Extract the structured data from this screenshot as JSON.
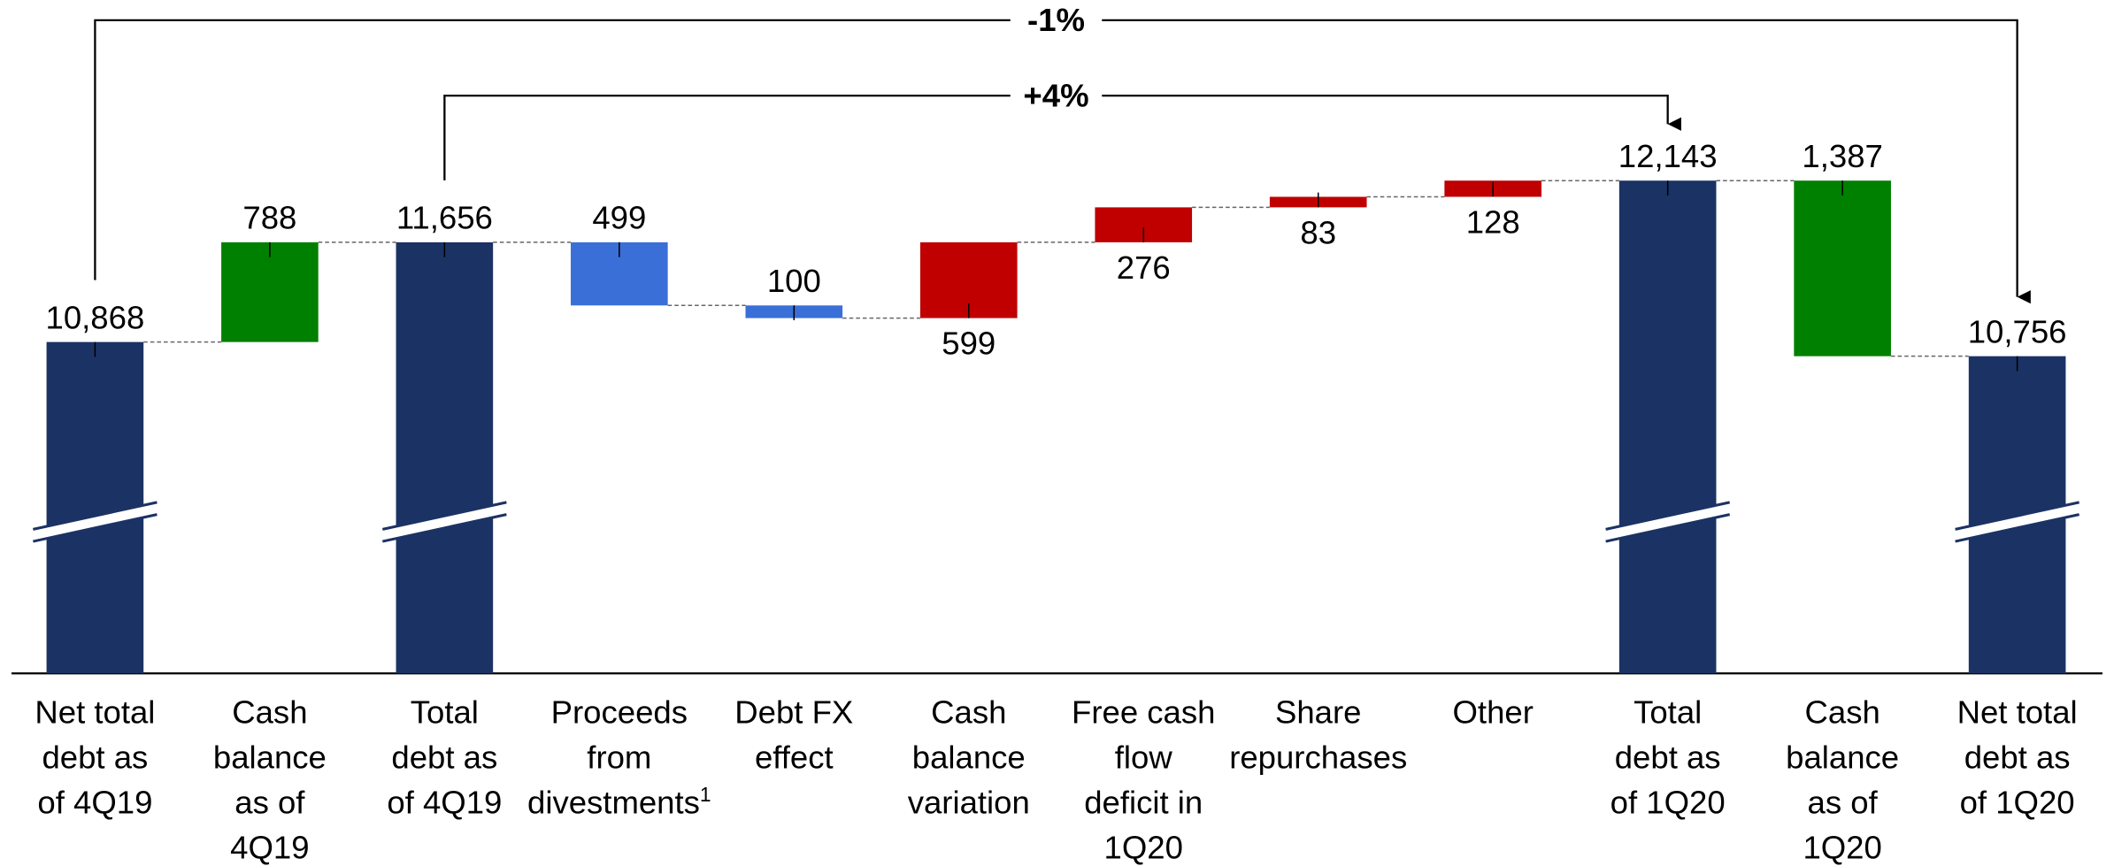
{
  "chart_data": {
    "type": "waterfall",
    "categories": [
      [
        "Net total",
        "debt as",
        "of 4Q19"
      ],
      [
        "Cash",
        "balance",
        "as of",
        "4Q19"
      ],
      [
        "Total",
        "debt as",
        "of 4Q19"
      ],
      [
        "Proceeds",
        "from",
        "divestments"
      ],
      [
        "Debt FX",
        "effect"
      ],
      [
        "Cash",
        "balance",
        "variation"
      ],
      [
        "Free cash",
        "flow",
        "deficit in",
        "1Q20"
      ],
      [
        "Share",
        "repurchases"
      ],
      [
        "Other"
      ],
      [
        "Total",
        "debt as",
        "of 1Q20"
      ],
      [
        "Cash",
        "balance",
        "as of",
        "1Q20"
      ],
      [
        "Net total",
        "debt as",
        "of 1Q20"
      ]
    ],
    "category_notes": [
      null,
      null,
      null,
      "1",
      null,
      null,
      null,
      null,
      null,
      null,
      null,
      null
    ],
    "values": [
      10868,
      788,
      11656,
      -499,
      -100,
      599,
      276,
      83,
      128,
      12143,
      -1387,
      10756
    ],
    "value_labels": [
      "10,868",
      "788",
      "11,656",
      "499",
      "100",
      "599",
      "276",
      "83",
      "128",
      "12,143",
      "1,387",
      "10,756"
    ],
    "measure": [
      "total",
      "relative",
      "total",
      "relative",
      "relative",
      "relative",
      "relative",
      "relative",
      "relative",
      "total",
      "relative",
      "total"
    ],
    "value_label_positions": [
      "above",
      "above",
      "above",
      "above",
      "above",
      "below",
      "below",
      "below",
      "below",
      "above",
      "above",
      "above"
    ],
    "colors": [
      "#1b3264",
      "#008000",
      "#1b3264",
      "#3a6fd8",
      "#3a6fd8",
      "#c00000",
      "#c00000",
      "#c00000",
      "#c00000",
      "#1b3264",
      "#008000",
      "#1b3264"
    ],
    "axis_break": true,
    "ylim": [
      8250,
      13570
    ],
    "annotations": [
      {
        "text": "-1%",
        "from": 0,
        "to": 11
      },
      {
        "text": "+4%",
        "from": 2,
        "to": 9
      }
    ]
  }
}
